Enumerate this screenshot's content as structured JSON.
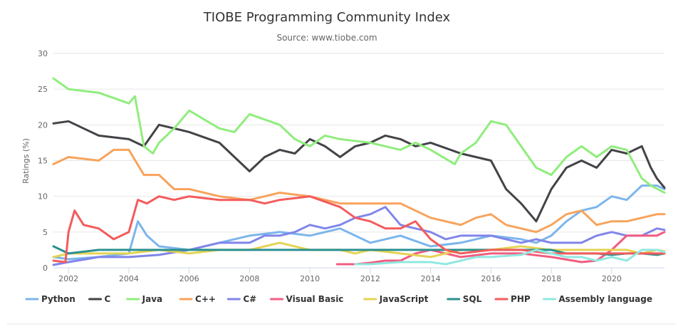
{
  "chart_data": {
    "type": "line",
    "title": "TIOBE Programming Community Index",
    "subtitle": "Source: www.tiobe.com",
    "xlabel": "",
    "ylabel": "Ratings (%)",
    "xlim": [
      2001.5,
      2021.75
    ],
    "ylim": [
      0,
      30
    ],
    "x_ticks": [
      2002,
      2004,
      2006,
      2008,
      2010,
      2012,
      2014,
      2016,
      2018,
      2020
    ],
    "y_ticks": [
      0,
      5,
      10,
      15,
      20,
      25,
      30
    ],
    "grid": "horizontal",
    "legend_position": "bottom",
    "series": [
      {
        "name": "Python",
        "color": "#7cb5ec",
        "points": [
          [
            2001.5,
            1.5
          ],
          [
            2002,
            1.2
          ],
          [
            2003,
            1.5
          ],
          [
            2004,
            2.0
          ],
          [
            2004.3,
            6.5
          ],
          [
            2004.6,
            4.5
          ],
          [
            2005,
            3.0
          ],
          [
            2006,
            2.5
          ],
          [
            2007,
            3.5
          ],
          [
            2008,
            4.5
          ],
          [
            2009,
            5.0
          ],
          [
            2010,
            4.5
          ],
          [
            2011,
            5.5
          ],
          [
            2012,
            3.5
          ],
          [
            2013,
            4.5
          ],
          [
            2014,
            3.0
          ],
          [
            2015,
            3.5
          ],
          [
            2016,
            4.5
          ],
          [
            2017,
            4.0
          ],
          [
            2017.5,
            3.5
          ],
          [
            2018,
            4.5
          ],
          [
            2018.5,
            6.5
          ],
          [
            2019,
            8.0
          ],
          [
            2019.5,
            8.5
          ],
          [
            2020,
            10.0
          ],
          [
            2020.5,
            9.5
          ],
          [
            2021,
            11.5
          ],
          [
            2021.5,
            11.5
          ],
          [
            2021.75,
            11.0
          ]
        ]
      },
      {
        "name": "C",
        "color": "#434348",
        "points": [
          [
            2001.5,
            20.2
          ],
          [
            2002,
            20.5
          ],
          [
            2003,
            18.5
          ],
          [
            2004,
            18.0
          ],
          [
            2004.5,
            17.0
          ],
          [
            2005,
            20.0
          ],
          [
            2005.5,
            19.5
          ],
          [
            2006,
            19.0
          ],
          [
            2007,
            17.5
          ],
          [
            2007.5,
            15.5
          ],
          [
            2008,
            13.5
          ],
          [
            2008.5,
            15.5
          ],
          [
            2009,
            16.5
          ],
          [
            2009.5,
            16.0
          ],
          [
            2010,
            18.0
          ],
          [
            2010.5,
            17.0
          ],
          [
            2011,
            15.5
          ],
          [
            2011.5,
            17.0
          ],
          [
            2012,
            17.5
          ],
          [
            2012.5,
            18.5
          ],
          [
            2013,
            18.0
          ],
          [
            2013.5,
            17.0
          ],
          [
            2014,
            17.5
          ],
          [
            2015,
            16.0
          ],
          [
            2016,
            15.0
          ],
          [
            2016.5,
            11.0
          ],
          [
            2017,
            9.0
          ],
          [
            2017.5,
            6.5
          ],
          [
            2018,
            11.0
          ],
          [
            2018.5,
            14.0
          ],
          [
            2019,
            15.0
          ],
          [
            2019.5,
            14.0
          ],
          [
            2020,
            16.5
          ],
          [
            2020.5,
            16.0
          ],
          [
            2021,
            17.0
          ],
          [
            2021.3,
            14.0
          ],
          [
            2021.5,
            12.5
          ],
          [
            2021.75,
            11.2
          ]
        ]
      },
      {
        "name": "Java",
        "color": "#90ed7d",
        "points": [
          [
            2001.5,
            26.5
          ],
          [
            2002,
            25.0
          ],
          [
            2003,
            24.5
          ],
          [
            2004,
            23.0
          ],
          [
            2004.2,
            24.0
          ],
          [
            2004.5,
            17.0
          ],
          [
            2004.8,
            16.0
          ],
          [
            2005,
            17.5
          ],
          [
            2005.5,
            19.5
          ],
          [
            2006,
            22.0
          ],
          [
            2007,
            19.5
          ],
          [
            2007.5,
            19.0
          ],
          [
            2008,
            21.5
          ],
          [
            2009,
            20.0
          ],
          [
            2009.5,
            18.0
          ],
          [
            2010,
            17.0
          ],
          [
            2010.5,
            18.5
          ],
          [
            2011,
            18.0
          ],
          [
            2012,
            17.5
          ],
          [
            2012.5,
            17.0
          ],
          [
            2013,
            16.5
          ],
          [
            2013.5,
            17.5
          ],
          [
            2014,
            16.5
          ],
          [
            2014.8,
            14.5
          ],
          [
            2015,
            16.0
          ],
          [
            2015.5,
            17.5
          ],
          [
            2016,
            20.5
          ],
          [
            2016.5,
            20.0
          ],
          [
            2017,
            17.0
          ],
          [
            2017.5,
            14.0
          ],
          [
            2018,
            13.0
          ],
          [
            2018.5,
            15.5
          ],
          [
            2019,
            17.0
          ],
          [
            2019.5,
            15.5
          ],
          [
            2020,
            17.0
          ],
          [
            2020.5,
            16.5
          ],
          [
            2021,
            12.5
          ],
          [
            2021.3,
            11.5
          ],
          [
            2021.75,
            10.5
          ]
        ]
      },
      {
        "name": "C++",
        "color": "#f7a35c",
        "points": [
          [
            2001.5,
            14.5
          ],
          [
            2002,
            15.5
          ],
          [
            2003,
            15.0
          ],
          [
            2003.5,
            16.5
          ],
          [
            2004,
            16.5
          ],
          [
            2004.5,
            13.0
          ],
          [
            2005,
            13.0
          ],
          [
            2005.5,
            11.0
          ],
          [
            2006,
            11.0
          ],
          [
            2007,
            10.0
          ],
          [
            2008,
            9.5
          ],
          [
            2008.5,
            10.0
          ],
          [
            2009,
            10.5
          ],
          [
            2010,
            10.0
          ],
          [
            2011,
            9.0
          ],
          [
            2012,
            9.0
          ],
          [
            2013,
            9.0
          ],
          [
            2014,
            7.0
          ],
          [
            2015,
            6.0
          ],
          [
            2015.5,
            7.0
          ],
          [
            2016,
            7.5
          ],
          [
            2016.5,
            6.0
          ],
          [
            2017,
            5.5
          ],
          [
            2017.5,
            5.0
          ],
          [
            2018,
            6.0
          ],
          [
            2018.5,
            7.5
          ],
          [
            2019,
            8.0
          ],
          [
            2019.5,
            6.0
          ],
          [
            2020,
            6.5
          ],
          [
            2020.5,
            6.5
          ],
          [
            2021,
            7.0
          ],
          [
            2021.5,
            7.5
          ],
          [
            2021.75,
            7.5
          ]
        ]
      },
      {
        "name": "C#",
        "color": "#8085e9",
        "points": [
          [
            2001.5,
            0.4
          ],
          [
            2002,
            0.8
          ],
          [
            2003,
            1.5
          ],
          [
            2004,
            1.5
          ],
          [
            2005,
            1.8
          ],
          [
            2006,
            2.5
          ],
          [
            2007,
            3.5
          ],
          [
            2008,
            3.5
          ],
          [
            2008.5,
            4.5
          ],
          [
            2009,
            4.5
          ],
          [
            2009.5,
            5.0
          ],
          [
            2010,
            6.0
          ],
          [
            2010.5,
            5.5
          ],
          [
            2011,
            6.0
          ],
          [
            2011.5,
            7.0
          ],
          [
            2012,
            7.5
          ],
          [
            2012.5,
            8.5
          ],
          [
            2013,
            6.0
          ],
          [
            2013.5,
            5.5
          ],
          [
            2014,
            5.0
          ],
          [
            2014.5,
            4.0
          ],
          [
            2015,
            4.5
          ],
          [
            2015.5,
            4.5
          ],
          [
            2016,
            4.5
          ],
          [
            2016.5,
            4.0
          ],
          [
            2017,
            3.5
          ],
          [
            2017.5,
            4.0
          ],
          [
            2018,
            3.5
          ],
          [
            2018.5,
            3.5
          ],
          [
            2019,
            3.5
          ],
          [
            2019.5,
            4.5
          ],
          [
            2020,
            5.0
          ],
          [
            2020.5,
            4.5
          ],
          [
            2021,
            4.5
          ],
          [
            2021.5,
            5.5
          ],
          [
            2021.75,
            5.3
          ]
        ]
      },
      {
        "name": "Visual Basic",
        "color": "#f15c80",
        "points": [
          [
            2010.9,
            0.5
          ],
          [
            2011.5,
            0.5
          ],
          [
            2012,
            0.7
          ],
          [
            2012.5,
            1.0
          ],
          [
            2013,
            1.0
          ],
          [
            2013.5,
            2.0
          ],
          [
            2014,
            2.5
          ],
          [
            2014.5,
            2.0
          ],
          [
            2015,
            1.5
          ],
          [
            2016,
            2.0
          ],
          [
            2017,
            2.0
          ],
          [
            2018,
            1.5
          ],
          [
            2019,
            0.8
          ],
          [
            2019.5,
            1.0
          ],
          [
            2020,
            2.5
          ],
          [
            2020.5,
            4.5
          ],
          [
            2021,
            4.5
          ],
          [
            2021.5,
            4.5
          ],
          [
            2021.75,
            5.0
          ]
        ]
      },
      {
        "name": "JavaScript",
        "color": "#e4d354",
        "points": [
          [
            2001.5,
            1.5
          ],
          [
            2002,
            2.0
          ],
          [
            2003,
            2.0
          ],
          [
            2004,
            2.0
          ],
          [
            2005,
            2.5
          ],
          [
            2006,
            2.0
          ],
          [
            2007,
            2.5
          ],
          [
            2008,
            2.5
          ],
          [
            2009,
            3.5
          ],
          [
            2010,
            2.5
          ],
          [
            2011,
            2.5
          ],
          [
            2011.5,
            2.0
          ],
          [
            2012,
            2.5
          ],
          [
            2013,
            2.0
          ],
          [
            2014,
            1.5
          ],
          [
            2015,
            2.5
          ],
          [
            2016,
            2.5
          ],
          [
            2017,
            3.0
          ],
          [
            2018,
            2.5
          ],
          [
            2019,
            2.5
          ],
          [
            2020,
            2.5
          ],
          [
            2020.5,
            2.5
          ],
          [
            2021,
            2.0
          ],
          [
            2021.5,
            2.5
          ],
          [
            2021.75,
            2.3
          ]
        ]
      },
      {
        "name": "SQL",
        "color": "#2b908f",
        "points": [
          [
            2001.5,
            3.0
          ],
          [
            2002,
            2.0
          ],
          [
            2003,
            2.5
          ],
          [
            2004,
            2.5
          ],
          [
            2005,
            2.5
          ],
          [
            2006,
            2.5
          ],
          [
            2008,
            2.5
          ],
          [
            2010,
            2.5
          ],
          [
            2012,
            2.5
          ],
          [
            2014,
            2.5
          ],
          [
            2016,
            2.5
          ],
          [
            2017,
            2.5
          ],
          [
            2018,
            2.5
          ],
          [
            2018.5,
            2.0
          ],
          [
            2019,
            2.0
          ],
          [
            2019.5,
            2.0
          ],
          [
            2020,
            1.8
          ],
          [
            2020.5,
            2.0
          ],
          [
            2021,
            2.0
          ],
          [
            2021.5,
            1.8
          ],
          [
            2021.75,
            2.0
          ]
        ]
      },
      {
        "name": "PHP",
        "color": "#f45b5b",
        "points": [
          [
            2001.5,
            1.0
          ],
          [
            2001.9,
            0.8
          ],
          [
            2002,
            5.0
          ],
          [
            2002.2,
            8.0
          ],
          [
            2002.5,
            6.0
          ],
          [
            2003,
            5.5
          ],
          [
            2003.5,
            4.0
          ],
          [
            2004,
            5.0
          ],
          [
            2004.3,
            9.5
          ],
          [
            2004.6,
            9.0
          ],
          [
            2005,
            10.0
          ],
          [
            2005.5,
            9.5
          ],
          [
            2006,
            10.0
          ],
          [
            2007,
            9.5
          ],
          [
            2008,
            9.5
          ],
          [
            2008.5,
            9.0
          ],
          [
            2009,
            9.5
          ],
          [
            2010,
            10.0
          ],
          [
            2011,
            8.5
          ],
          [
            2011.5,
            7.0
          ],
          [
            2012,
            6.5
          ],
          [
            2012.5,
            5.5
          ],
          [
            2013,
            5.5
          ],
          [
            2013.5,
            6.5
          ],
          [
            2014,
            4.0
          ],
          [
            2014.5,
            2.5
          ],
          [
            2015,
            2.0
          ],
          [
            2016,
            2.5
          ],
          [
            2017,
            2.5
          ],
          [
            2018,
            2.0
          ],
          [
            2019,
            2.0
          ],
          [
            2020,
            2.0
          ],
          [
            2020.5,
            2.0
          ],
          [
            2021,
            2.0
          ],
          [
            2021.5,
            2.0
          ],
          [
            2021.75,
            2.0
          ]
        ]
      },
      {
        "name": "Assembly language",
        "color": "#91e8e1",
        "points": [
          [
            2011.5,
            0.5
          ],
          [
            2012,
            0.5
          ],
          [
            2013,
            0.8
          ],
          [
            2014,
            0.8
          ],
          [
            2014.5,
            0.5
          ],
          [
            2015,
            1.0
          ],
          [
            2015.5,
            1.5
          ],
          [
            2016,
            1.5
          ],
          [
            2017,
            1.8
          ],
          [
            2017.5,
            2.5
          ],
          [
            2018,
            2.0
          ],
          [
            2018.5,
            1.5
          ],
          [
            2019,
            1.5
          ],
          [
            2019.5,
            1.0
          ],
          [
            2020,
            1.5
          ],
          [
            2020.5,
            1.0
          ],
          [
            2021,
            2.5
          ],
          [
            2021.5,
            2.5
          ],
          [
            2021.75,
            2.2
          ]
        ]
      }
    ]
  }
}
